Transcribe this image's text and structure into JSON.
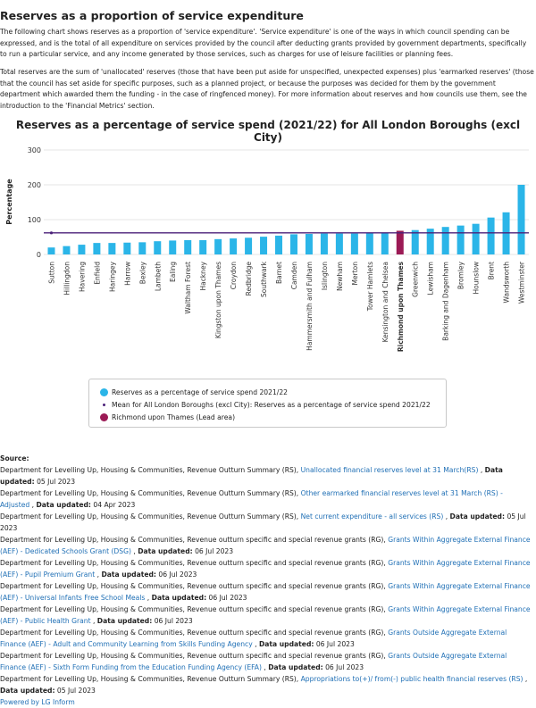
{
  "section": {
    "title": "Reserves as a proportion of service expenditure",
    "para1": "The following chart shows reserves as a proportion of 'service expenditure'.  'Service expenditure' is one of the ways in which council spending can be expressed, and is the total of all expenditure on services provided by the council after deducting grants provided by government departments, specifically to run a particular service, and any income generated by those services, such as charges for use of leisure facilities or planning fees.",
    "para2": "Total reserves are the sum of 'unallocated' reserves (those that have been put aside for unspecified, unexpected expenses) plus 'earmarked reserves' (those that the council has set aside for specific purposes, such as a planned project, or because the purposes was decided for them by the government department which awarded them the funding - in the case of ringfenced money).  For more information about reserves and how councils use them, see the introduction to the 'Financial Metrics' section."
  },
  "chart_data": {
    "type": "bar",
    "title": "Reserves as a percentage of service spend (2021/22) for All London Boroughs (excl City)",
    "xlabel": "",
    "ylabel": "Percentage",
    "ylim": [
      0,
      300
    ],
    "yticks": [
      0,
      100,
      200,
      300
    ],
    "grid": true,
    "categories": [
      "Sutton",
      "Hillingdon",
      "Havering",
      "Enfield",
      "Haringey",
      "Harrow",
      "Bexley",
      "Lambeth",
      "Ealing",
      "Waltham Forest",
      "Hackney",
      "Kingston upon Thames",
      "Croydon",
      "Redbridge",
      "Southwark",
      "Barnet",
      "Camden",
      "Hammersmith and Fulham",
      "Islington",
      "Newham",
      "Merton",
      "Tower Hamlets",
      "Kensington and Chelsea",
      "Richmond upon Thames",
      "Greenwich",
      "Lewisham",
      "Barking and Dagenham",
      "Bromley",
      "Hounslow",
      "Brent",
      "Wandsworth",
      "Westminster"
    ],
    "series": [
      {
        "name": "Reserves as a percentage of service spend 2021/22",
        "values": [
          20,
          24,
          28,
          33,
          33,
          34,
          35,
          38,
          40,
          41,
          41,
          44,
          46,
          48,
          51,
          54,
          58,
          59,
          60,
          60,
          60,
          62,
          63,
          68,
          70,
          74,
          79,
          83,
          88,
          106,
          121,
          200
        ]
      }
    ],
    "mean": {
      "name": "Mean for All London Boroughs (excl City): Reserves as a percentage of service spend 2021/22",
      "value": 62
    },
    "lead_area": {
      "name": "Richmond upon Thames (Lead area)",
      "category": "Richmond upon Thames"
    },
    "legend_position": "bottom",
    "colors": {
      "bar": "#2bb5e8",
      "lead": "#9b1a55",
      "mean": "#4b2179",
      "grid": "#dcdcdc"
    }
  },
  "legend": {
    "series_label": "Reserves as a percentage of service spend 2021/22",
    "mean_label": "Mean for All London Boroughs (excl City): Reserves as a percentage of service spend 2021/22",
    "lead_label": "Richmond upon Thames (Lead area)"
  },
  "sources": {
    "heading": "Source:",
    "items": [
      {
        "prefix": "Department for Levelling Up, Housing & Communities, Revenue Outturn Summary (RS),",
        "link": "Unallocated financial reserves level at 31 March(RS)",
        "updated_label": "Data updated:",
        "date": "05 Jul 2023"
      },
      {
        "prefix": "Department for Levelling Up, Housing & Communities, Revenue Outturn Summary (RS),",
        "link": "Other earmarked financial reserves level at 31 March (RS) - Adjusted",
        "updated_label": "Data updated:",
        "date": "04 Apr 2023"
      },
      {
        "prefix": "Department for Levelling Up, Housing & Communities, Revenue Outturn Summary (RS),",
        "link": "Net current expenditure - all services (RS)",
        "updated_label": "Data updated:",
        "date": "05 Jul 2023"
      },
      {
        "prefix": "Department for Levelling Up, Housing & Communities, Revenue outturn specific and special revenue grants (RG),",
        "link": "Grants Within Aggregate External Finance (AEF) - Dedicated Schools Grant (DSG)",
        "updated_label": "Data updated:",
        "date": "06 Jul 2023"
      },
      {
        "prefix": "Department for Levelling Up, Housing & Communities, Revenue outturn specific and special revenue grants (RG),",
        "link": "Grants Within Aggregate External Finance (AEF) - Pupil Premium Grant",
        "updated_label": "Data updated:",
        "date": "06 Jul 2023"
      },
      {
        "prefix": "Department for Levelling Up, Housing & Communities, Revenue outturn specific and special revenue grants (RG),",
        "link": "Grants Within Aggregate External Finance (AEF) - Universal Infants Free School Meals",
        "updated_label": "Data updated:",
        "date": "06 Jul 2023"
      },
      {
        "prefix": "Department for Levelling Up, Housing & Communities, Revenue outturn specific and special revenue grants (RG),",
        "link": "Grants Within Aggregate External Finance (AEF) - Public Health Grant",
        "updated_label": "Data updated:",
        "date": "06 Jul 2023"
      },
      {
        "prefix": "Department for Levelling Up, Housing & Communities, Revenue outturn specific and special revenue grants (RG),",
        "link": "Grants Outside Aggregate External Finance (AEF) - Adult and Community Learning from Skills Funding Agency",
        "updated_label": "Data updated:",
        "date": "06 Jul 2023"
      },
      {
        "prefix": "Department for Levelling Up, Housing & Communities, Revenue outturn specific and special revenue grants (RG),",
        "link": "Grants Outside Aggregate External Finance (AEF) - Sixth Form Funding from the Education Funding Agency (EFA)",
        "updated_label": "Data updated:",
        "date": "06 Jul 2023"
      },
      {
        "prefix": "Department for Levelling Up, Housing & Communities, Revenue Outturn Summary (RS),",
        "link": "Appropriations to(+)/ from(-) public health financial reserves (RS)",
        "updated_label": "Data updated:",
        "date": "05 Jul 2023"
      }
    ],
    "powered_by": "Powered by LG Inform"
  }
}
